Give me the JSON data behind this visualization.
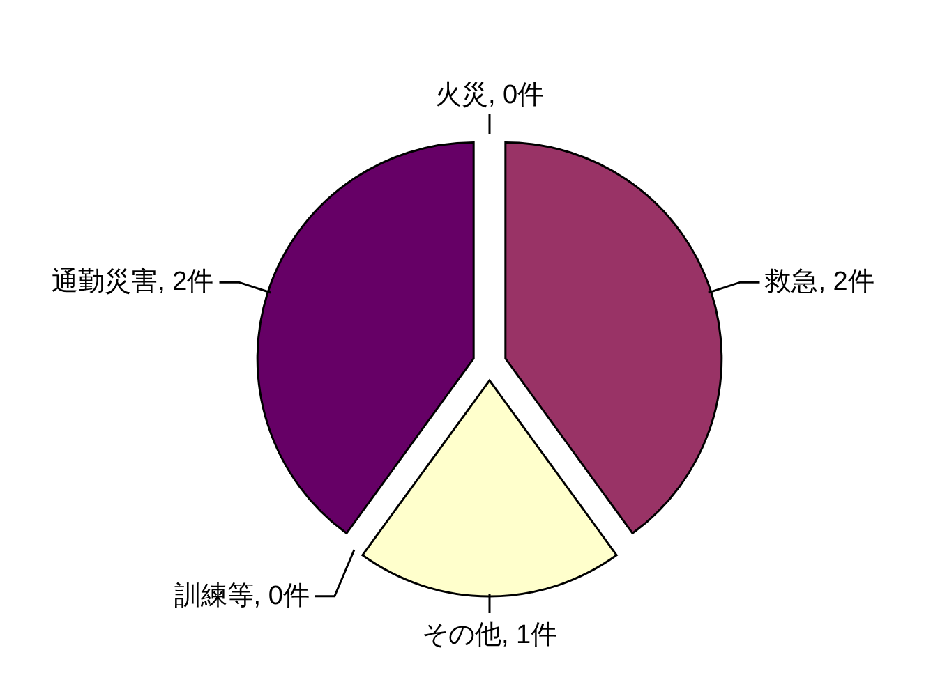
{
  "chart_data": {
    "type": "pie",
    "categories": [
      "火災",
      "救急",
      "その他",
      "訓練等",
      "通勤災害"
    ],
    "values": [
      0,
      2,
      1,
      0,
      2
    ],
    "value_labels": [
      ", 0件",
      ", 2件",
      ", 1件",
      ", 0件",
      ", 2件"
    ],
    "colors": [
      "#9999ff",
      "#993366",
      "#ffffcc",
      "#ccffff",
      "#660066"
    ],
    "legend": false
  }
}
